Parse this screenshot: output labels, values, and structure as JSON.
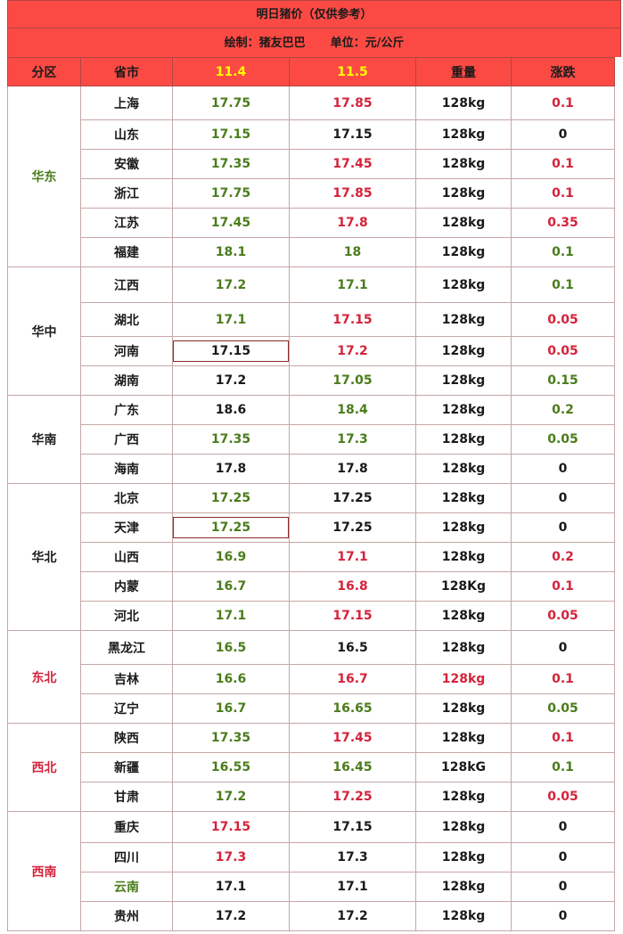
{
  "title": "明日猪价（仅供参考）",
  "subtitle_left": "绘制：猪友巴巴",
  "subtitle_right": "单位：元/公斤",
  "headers": {
    "region": "分区",
    "province": "省市",
    "date1": "11.4",
    "date2": "11.5",
    "weight": "重量",
    "change": "涨跌"
  },
  "colors": {
    "header_bg": "#fb4a44",
    "green": "#4b7c1c",
    "red": "#d4233b",
    "black": "#1a1a1a",
    "date_header": "#ffff00"
  },
  "groups": [
    {
      "name": "华东",
      "color": "g",
      "rows": [
        {
          "prov": "上海",
          "p1": "17.75",
          "p2": "17.85",
          "w": "128kg",
          "chg": "0.1",
          "pc": "k",
          "c1": "g",
          "c2": "r",
          "cw": "k",
          "cc": "r",
          "h": 38
        },
        {
          "prov": "山东",
          "p1": "17.15",
          "p2": "17.15",
          "w": "128kg",
          "chg": "0",
          "pc": "k",
          "c1": "g",
          "c2": "k",
          "cw": "k",
          "cc": "k",
          "h": 33
        },
        {
          "prov": "安徽",
          "p1": "17.35",
          "p2": "17.45",
          "w": "128kg",
          "chg": "0.1",
          "pc": "k",
          "c1": "g",
          "c2": "r",
          "cw": "k",
          "cc": "r",
          "h": 33
        },
        {
          "prov": "浙江",
          "p1": "17.75",
          "p2": "17.85",
          "w": "128kg",
          "chg": "0.1",
          "pc": "k",
          "c1": "g",
          "c2": "r",
          "cw": "k",
          "cc": "r",
          "h": 33
        },
        {
          "prov": "江苏",
          "p1": "17.45",
          "p2": "17.8",
          "w": "128kg",
          "chg": "0.35",
          "pc": "k",
          "c1": "g",
          "c2": "r",
          "cw": "k",
          "cc": "r",
          "h": 33
        },
        {
          "prov": "福建",
          "p1": "18.1",
          "p2": "18",
          "w": "128kg",
          "chg": "0.1",
          "pc": "k",
          "c1": "g",
          "c2": "g",
          "cw": "k",
          "cc": "g",
          "h": 33
        }
      ]
    },
    {
      "name": "华中",
      "color": "k",
      "rows": [
        {
          "prov": "江西",
          "p1": "17.2",
          "p2": "17.1",
          "w": "128kg",
          "chg": "0.1",
          "pc": "k",
          "c1": "g",
          "c2": "g",
          "cw": "k",
          "cc": "g",
          "h": 40
        },
        {
          "prov": "湖北",
          "p1": "17.1",
          "p2": "17.15",
          "w": "128kg",
          "chg": "0.05",
          "pc": "k",
          "c1": "g",
          "c2": "r",
          "cw": "k",
          "cc": "r",
          "h": 38
        },
        {
          "prov": "河南",
          "p1": "17.15",
          "p2": "17.2",
          "w": "128kg",
          "chg": "0.05",
          "pc": "k",
          "c1": "k",
          "c2": "r",
          "cw": "k",
          "cc": "r",
          "h": 33,
          "box": true
        },
        {
          "prov": "湖南",
          "p1": "17.2",
          "p2": "17.05",
          "w": "128kg",
          "chg": "0.15",
          "pc": "k",
          "c1": "k",
          "c2": "g",
          "cw": "k",
          "cc": "g",
          "h": 33
        }
      ]
    },
    {
      "name": "华南",
      "color": "k",
      "rows": [
        {
          "prov": "广东",
          "p1": "18.6",
          "p2": "18.4",
          "w": "128kg",
          "chg": "0.2",
          "pc": "k",
          "c1": "k",
          "c2": "g",
          "cw": "k",
          "cc": "g",
          "h": 33
        },
        {
          "prov": "广西",
          "p1": "17.35",
          "p2": "17.3",
          "w": "128kg",
          "chg": "0.05",
          "pc": "k",
          "c1": "g",
          "c2": "g",
          "cw": "k",
          "cc": "g",
          "h": 33
        },
        {
          "prov": "海南",
          "p1": "17.8",
          "p2": "17.8",
          "w": "128kg",
          "chg": "0",
          "pc": "k",
          "c1": "k",
          "c2": "k",
          "cw": "k",
          "cc": "k",
          "h": 33
        }
      ]
    },
    {
      "name": "华北",
      "color": "k",
      "rows": [
        {
          "prov": "北京",
          "p1": "17.25",
          "p2": "17.25",
          "w": "128kg",
          "chg": "0",
          "pc": "k",
          "c1": "g",
          "c2": "k",
          "cw": "k",
          "cc": "k",
          "h": 33
        },
        {
          "prov": "天津",
          "p1": "17.25",
          "p2": "17.25",
          "w": "128kg",
          "chg": "0",
          "pc": "k",
          "c1": "g",
          "c2": "k",
          "cw": "k",
          "cc": "k",
          "h": 33,
          "box": true
        },
        {
          "prov": "山西",
          "p1": "16.9",
          "p2": "17.1",
          "w": "128kg",
          "chg": "0.2",
          "pc": "k",
          "c1": "g",
          "c2": "r",
          "cw": "k",
          "cc": "r",
          "h": 33
        },
        {
          "prov": "内蒙",
          "p1": "16.7",
          "p2": "16.8",
          "w": "128Kg",
          "chg": "0.1",
          "pc": "k",
          "c1": "g",
          "c2": "r",
          "cw": "k",
          "cc": "r",
          "h": 33
        },
        {
          "prov": "河北",
          "p1": "17.1",
          "p2": "17.15",
          "w": "128kg",
          "chg": "0.05",
          "pc": "k",
          "c1": "g",
          "c2": "r",
          "cw": "k",
          "cc": "r",
          "h": 33
        }
      ]
    },
    {
      "name": "东北",
      "color": "r",
      "rows": [
        {
          "prov": "黑龙江",
          "p1": "16.5",
          "p2": "16.5",
          "w": "128kg",
          "chg": "0",
          "pc": "k",
          "c1": "g",
          "c2": "k",
          "cw": "k",
          "cc": "k",
          "h": 38
        },
        {
          "prov": "吉林",
          "p1": "16.6",
          "p2": "16.7",
          "w": "128kg",
          "chg": "0.1",
          "pc": "k",
          "c1": "g",
          "c2": "r",
          "cw": "r",
          "cc": "r",
          "h": 33
        },
        {
          "prov": "辽宁",
          "p1": "16.7",
          "p2": "16.65",
          "w": "128kg",
          "chg": "0.05",
          "pc": "k",
          "c1": "g",
          "c2": "g",
          "cw": "k",
          "cc": "g",
          "h": 33
        }
      ]
    },
    {
      "name": "西北",
      "color": "r",
      "rows": [
        {
          "prov": "陕西",
          "p1": "17.35",
          "p2": "17.45",
          "w": "128kg",
          "chg": "0.1",
          "pc": "k",
          "c1": "g",
          "c2": "r",
          "cw": "k",
          "cc": "r",
          "h": 33
        },
        {
          "prov": "新疆",
          "p1": "16.55",
          "p2": "16.45",
          "w": "128kG",
          "chg": "0.1",
          "pc": "k",
          "c1": "g",
          "c2": "g",
          "cw": "k",
          "cc": "g",
          "h": 33
        },
        {
          "prov": "甘肃",
          "p1": "17.2",
          "p2": "17.25",
          "w": "128kg",
          "chg": "0.05",
          "pc": "k",
          "c1": "g",
          "c2": "r",
          "cw": "k",
          "cc": "r",
          "h": 33
        }
      ]
    },
    {
      "name": "西南",
      "color": "r",
      "rows": [
        {
          "prov": "重庆",
          "p1": "17.15",
          "p2": "17.15",
          "w": "128kg",
          "chg": "0",
          "pc": "k",
          "c1": "r",
          "c2": "k",
          "cw": "k",
          "cc": "k",
          "h": 35
        },
        {
          "prov": "四川",
          "p1": "17.3",
          "p2": "17.3",
          "w": "128kg",
          "chg": "0",
          "pc": "k",
          "c1": "r",
          "c2": "k",
          "cw": "k",
          "cc": "k",
          "h": 33
        },
        {
          "prov": "云南",
          "p1": "17.1",
          "p2": "17.1",
          "w": "128kg",
          "chg": "0",
          "pc": "g",
          "c1": "k",
          "c2": "k",
          "cw": "k",
          "cc": "k",
          "h": 33
        },
        {
          "prov": "贵州",
          "p1": "17.2",
          "p2": "17.2",
          "w": "128kg",
          "chg": "0",
          "pc": "k",
          "c1": "k",
          "c2": "k",
          "cw": "k",
          "cc": "k",
          "h": 33
        }
      ]
    }
  ]
}
